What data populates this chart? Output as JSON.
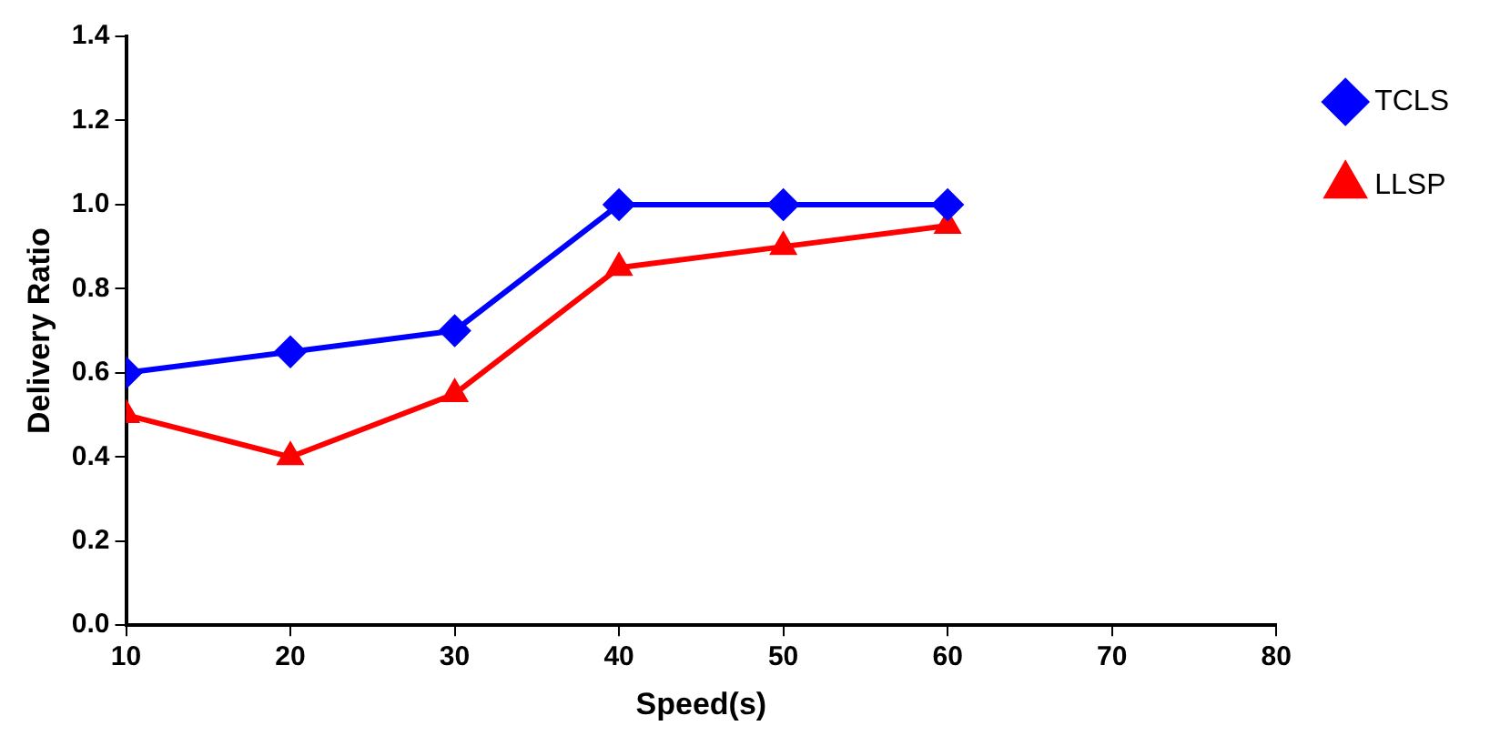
{
  "chart_data": {
    "type": "line",
    "xlabel": "Speed(s)",
    "ylabel": "Delivery Ratio",
    "x": [
      10,
      20,
      30,
      40,
      50,
      60
    ],
    "series": [
      {
        "name": "TCLS",
        "color": "#0000ff",
        "marker": "diamond",
        "values": [
          0.6,
          0.65,
          0.7,
          1.0,
          1.0,
          1.0
        ]
      },
      {
        "name": "LLSP",
        "color": "#ff0000",
        "marker": "triangle",
        "values": [
          0.5,
          0.4,
          0.55,
          0.85,
          0.9,
          0.95
        ]
      }
    ],
    "xlim": [
      10,
      80
    ],
    "xticks": [
      10,
      20,
      30,
      40,
      50,
      60,
      70,
      80
    ],
    "ylim": [
      0,
      1.4
    ],
    "yticks": [
      {
        "value": 0,
        "label": "0.0"
      },
      {
        "value": 0.2,
        "label": "0.2"
      },
      {
        "value": 0.4,
        "label": "0.4"
      },
      {
        "value": 0.6,
        "label": "0.6"
      },
      {
        "value": 0.8,
        "label": "0.8"
      },
      {
        "value": 1.0,
        "label": "1.0"
      },
      {
        "value": 1.2,
        "label": "1.2"
      },
      {
        "value": 1.4,
        "label": "1.4"
      }
    ],
    "grid": false,
    "legend": "top right",
    "line_style": "solid"
  }
}
